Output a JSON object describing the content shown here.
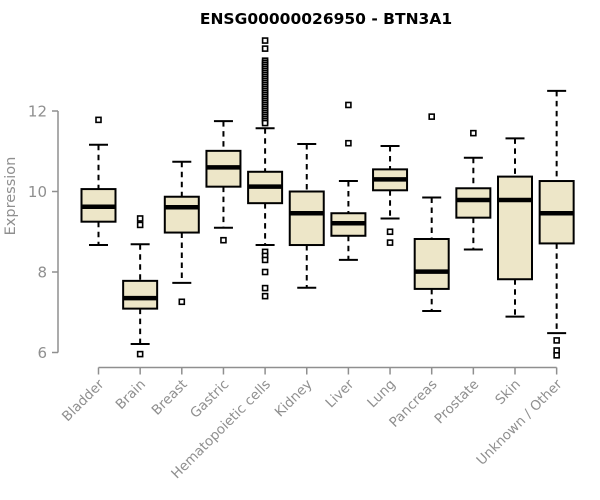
{
  "title": "ENSG00000026950 - BTN3A1",
  "chart_data": {
    "type": "boxplot",
    "title": "ENSG00000026950 - BTN3A1",
    "xlabel": "",
    "ylabel": "Expression",
    "ylim": [
      6,
      12
    ],
    "yticks": [
      6,
      8,
      10,
      12
    ],
    "grid": false,
    "legend": false,
    "box_fill_color": "#EDE6C8",
    "box_border_color": "#000000",
    "axis_color": "#8F8F8F",
    "categories": [
      "Bladder",
      "Brain",
      "Breast",
      "Gastric",
      "Hematopoietic cells",
      "Kidney",
      "Liver",
      "Lung",
      "Pancreas",
      "Prostate",
      "Skin",
      "Unknown / Other"
    ],
    "boxes": [
      {
        "category": "Bladder",
        "whisker_low": 8.67,
        "q1": 9.25,
        "median": 9.62,
        "q3": 10.06,
        "whisker_high": 11.16,
        "outliers": [
          11.78
        ]
      },
      {
        "category": "Brain",
        "whisker_low": 6.21,
        "q1": 7.09,
        "median": 7.35,
        "q3": 7.78,
        "whisker_high": 8.69,
        "outliers": [
          9.33,
          9.17,
          5.96
        ]
      },
      {
        "category": "Breast",
        "whisker_low": 7.73,
        "q1": 8.98,
        "median": 9.61,
        "q3": 9.87,
        "whisker_high": 10.74,
        "outliers": [
          7.26
        ]
      },
      {
        "category": "Gastric",
        "whisker_low": 9.1,
        "q1": 10.12,
        "median": 10.6,
        "q3": 11.01,
        "whisker_high": 11.75,
        "outliers": [
          8.79
        ]
      },
      {
        "category": "Hematopoietic cells",
        "whisker_low": 8.67,
        "q1": 9.71,
        "median": 10.12,
        "q3": 10.49,
        "whisker_high": 11.57,
        "outliers": [
          13.75,
          13.55,
          13.25,
          13.2,
          13.15,
          13.1,
          13.05,
          13.0,
          12.95,
          12.9,
          12.85,
          12.8,
          12.75,
          12.7,
          12.65,
          12.6,
          12.55,
          12.5,
          12.45,
          12.4,
          12.35,
          12.3,
          12.25,
          12.2,
          12.15,
          12.1,
          12.05,
          12.0,
          11.95,
          11.9,
          11.85,
          11.8,
          11.75,
          11.7,
          8.5,
          8.4,
          8.3,
          8.0,
          7.6,
          7.4
        ]
      },
      {
        "category": "Kidney",
        "whisker_low": 7.61,
        "q1": 8.67,
        "median": 9.46,
        "q3": 10.0,
        "whisker_high": 11.18,
        "outliers": []
      },
      {
        "category": "Liver",
        "whisker_low": 8.3,
        "q1": 8.9,
        "median": 9.21,
        "q3": 9.46,
        "whisker_high": 10.26,
        "outliers": [
          12.15,
          11.2
        ]
      },
      {
        "category": "Lung",
        "whisker_low": 9.33,
        "q1": 10.03,
        "median": 10.3,
        "q3": 10.55,
        "whisker_high": 11.13,
        "outliers": [
          9.0,
          8.73
        ]
      },
      {
        "category": "Pancreas",
        "whisker_low": 7.03,
        "q1": 7.58,
        "median": 8.01,
        "q3": 8.82,
        "whisker_high": 9.85,
        "outliers": [
          11.86
        ]
      },
      {
        "category": "Prostate",
        "whisker_low": 8.56,
        "q1": 9.35,
        "median": 9.79,
        "q3": 10.08,
        "whisker_high": 10.84,
        "outliers": [
          11.45
        ]
      },
      {
        "category": "Skin",
        "whisker_low": 6.89,
        "q1": 7.82,
        "median": 9.79,
        "q3": 10.37,
        "whisker_high": 11.32,
        "outliers": []
      },
      {
        "category": "Unknown / Other",
        "whisker_low": 6.48,
        "q1": 8.71,
        "median": 9.46,
        "q3": 10.26,
        "whisker_high": 12.5,
        "outliers": [
          6.3,
          6.05,
          5.93
        ]
      }
    ]
  }
}
